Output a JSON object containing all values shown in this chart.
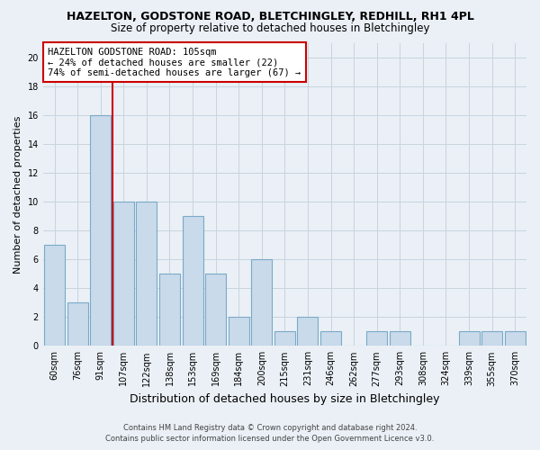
{
  "title": "HAZELTON, GODSTONE ROAD, BLETCHINGLEY, REDHILL, RH1 4PL",
  "subtitle": "Size of property relative to detached houses in Bletchingley",
  "xlabel": "Distribution of detached houses by size in Bletchingley",
  "ylabel": "Number of detached properties",
  "footer_line1": "Contains HM Land Registry data © Crown copyright and database right 2024.",
  "footer_line2": "Contains public sector information licensed under the Open Government Licence v3.0.",
  "categories": [
    "60sqm",
    "76sqm",
    "91sqm",
    "107sqm",
    "122sqm",
    "138sqm",
    "153sqm",
    "169sqm",
    "184sqm",
    "200sqm",
    "215sqm",
    "231sqm",
    "246sqm",
    "262sqm",
    "277sqm",
    "293sqm",
    "308sqm",
    "324sqm",
    "339sqm",
    "355sqm",
    "370sqm"
  ],
  "values": [
    7,
    3,
    16,
    10,
    10,
    5,
    9,
    5,
    2,
    6,
    1,
    2,
    1,
    0,
    1,
    1,
    0,
    0,
    1,
    1,
    1
  ],
  "bar_color": "#c9daea",
  "bar_edge_color": "#7aaac8",
  "vline_x": 3,
  "vline_color": "#cc0000",
  "annotation_text": "HAZELTON GODSTONE ROAD: 105sqm\n← 24% of detached houses are smaller (22)\n74% of semi-detached houses are larger (67) →",
  "annotation_box_facecolor": "#ffffff",
  "annotation_box_edgecolor": "#cc0000",
  "ylim": [
    0,
    21
  ],
  "yticks": [
    0,
    2,
    4,
    6,
    8,
    10,
    12,
    14,
    16,
    18,
    20
  ],
  "grid_color": "#c8d4de",
  "background_color": "#eaf0f6",
  "title_fontsize": 9,
  "subtitle_fontsize": 8.5,
  "ylabel_fontsize": 8,
  "xlabel_fontsize": 9,
  "tick_fontsize": 7,
  "footer_fontsize": 6,
  "annotation_fontsize": 7.5
}
